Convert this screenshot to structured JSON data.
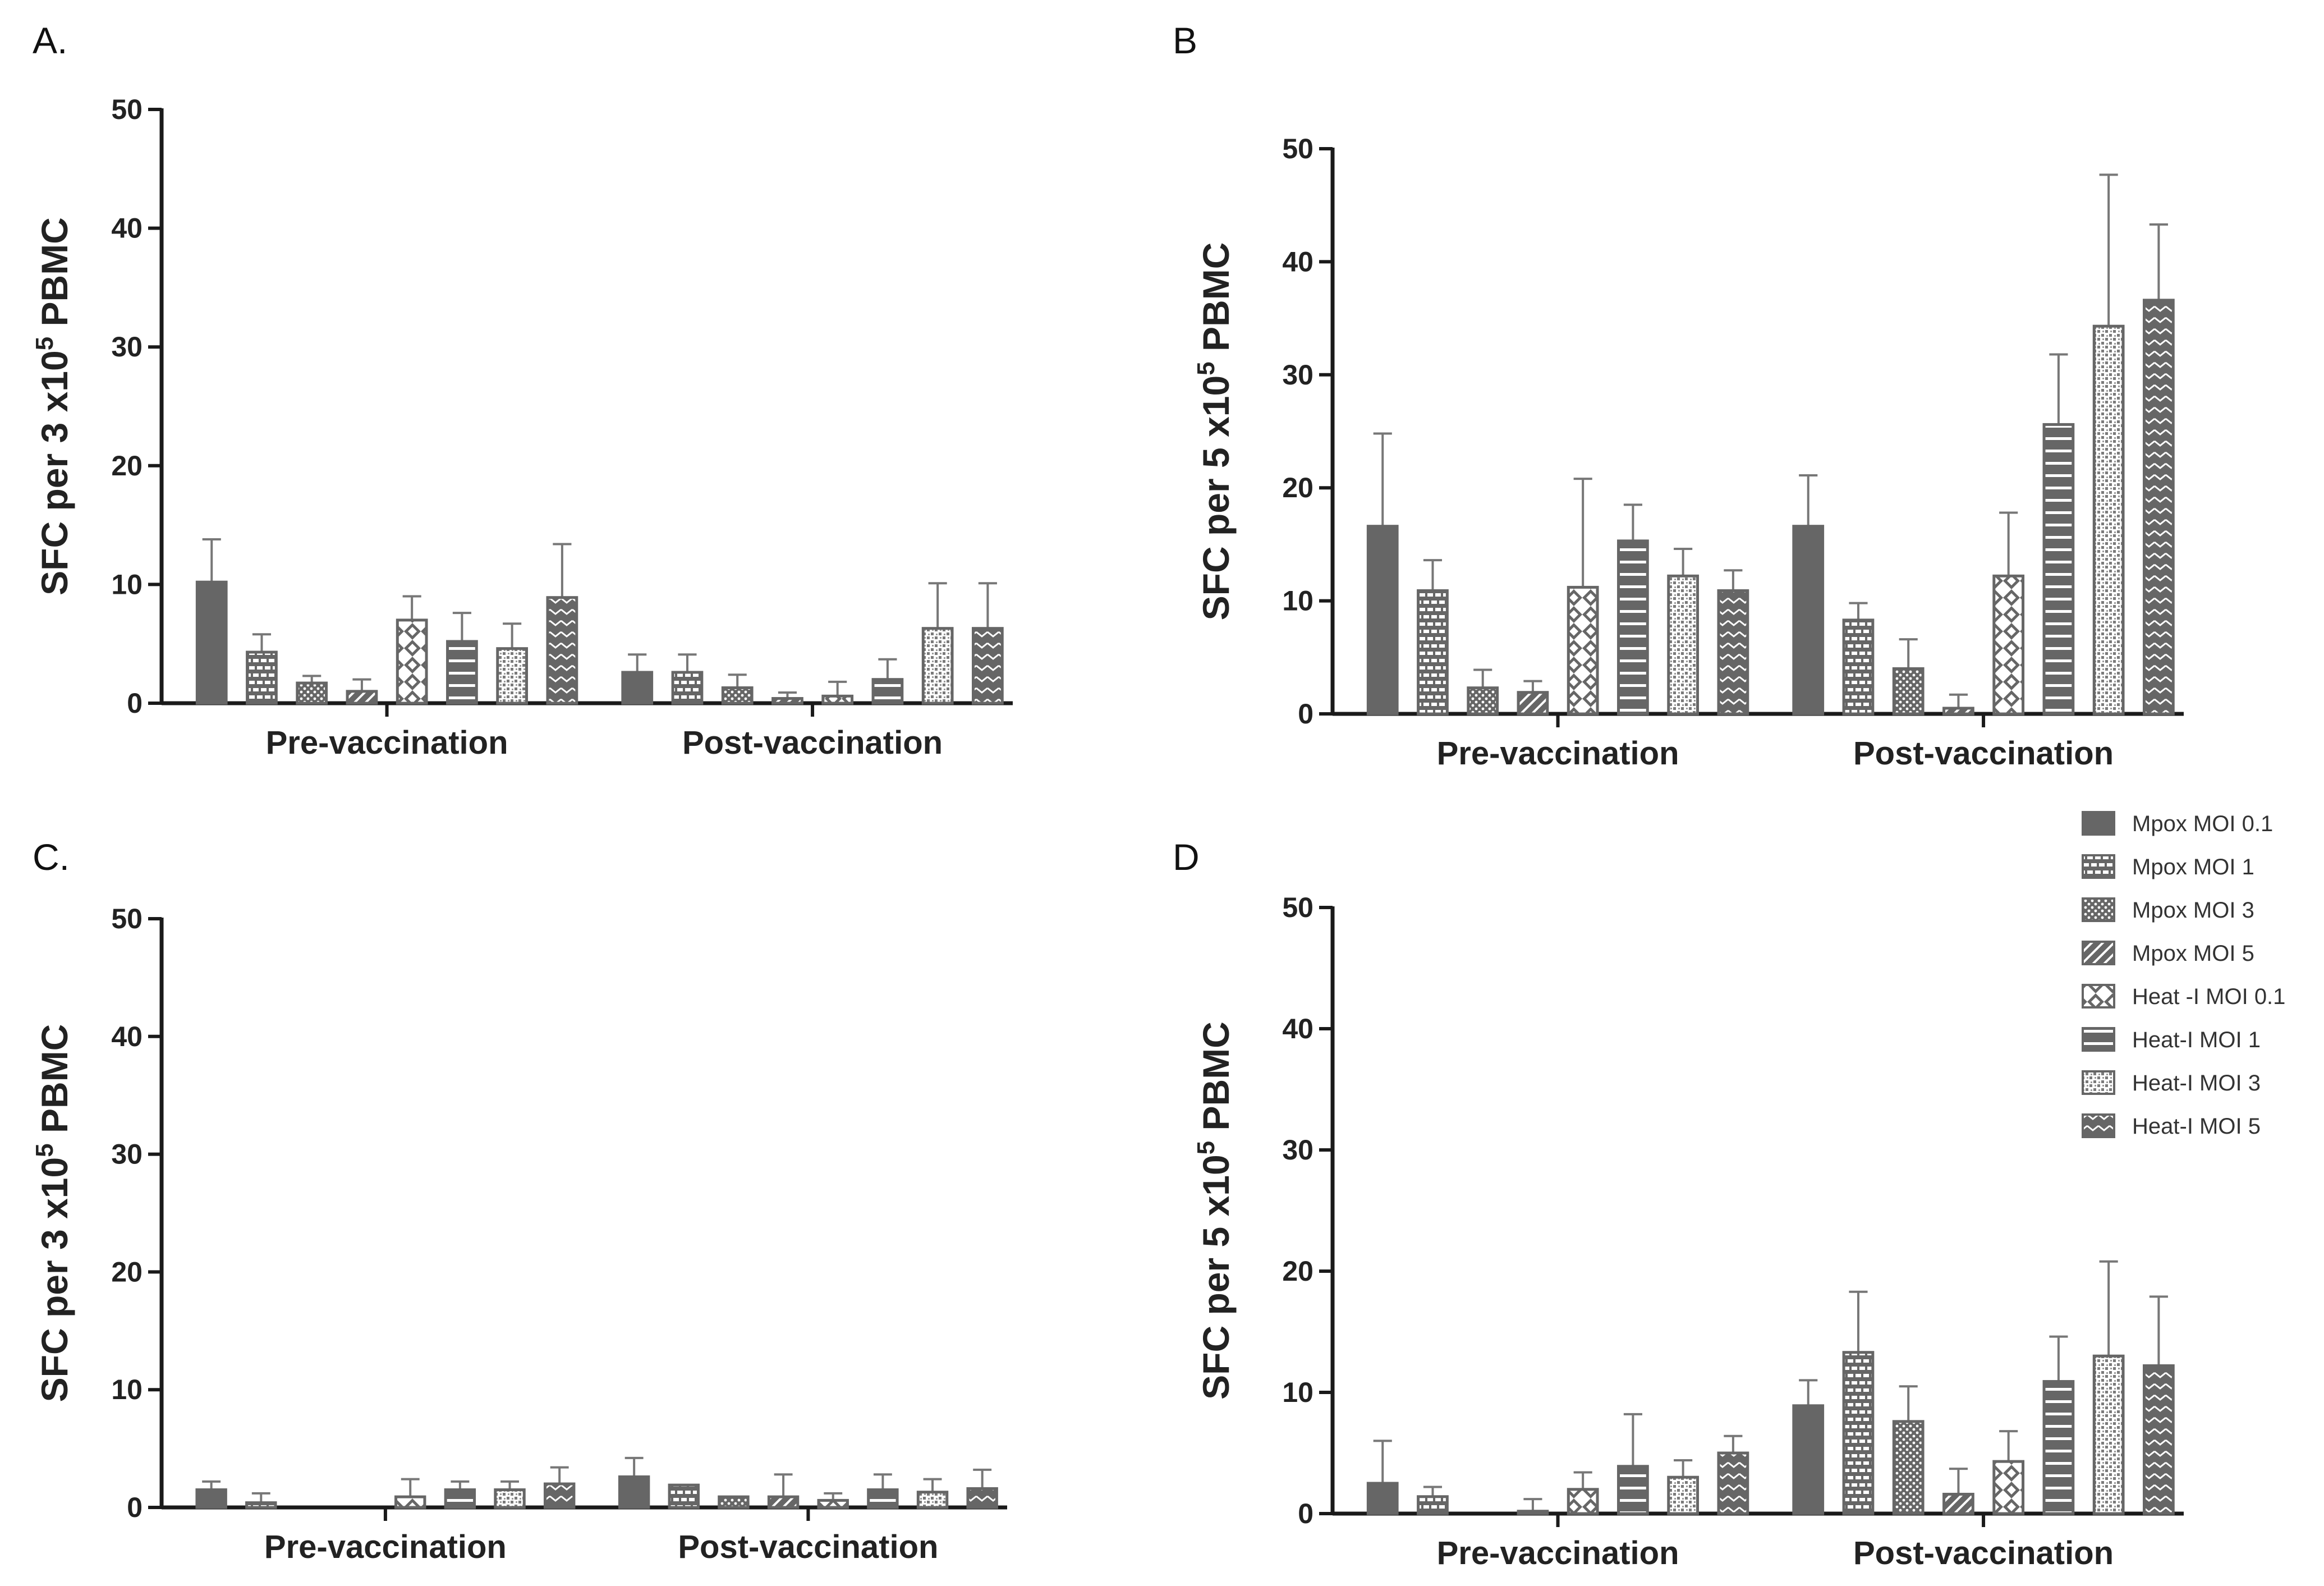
{
  "legend": {
    "entries": [
      {
        "label": "Mpox MOI 0.1",
        "pattern": "solid"
      },
      {
        "label": "Mpox MOI 1",
        "pattern": "bricks"
      },
      {
        "label": "Mpox MOI 3",
        "pattern": "dots"
      },
      {
        "label": "Mpox MOI 5",
        "pattern": "diag"
      },
      {
        "label": "Heat -I MOI 0.1",
        "pattern": "diamonds"
      },
      {
        "label": "Heat-I MOI 1",
        "pattern": "hlines"
      },
      {
        "label": "Heat-I MOI 3",
        "pattern": "speckle"
      },
      {
        "label": "Heat-I MOI 5",
        "pattern": "zigzag"
      }
    ]
  },
  "colors": {
    "bar": "#666666",
    "axis": "#1a1a1a",
    "background": "#ffffff"
  },
  "chart_data": [
    {
      "panel": "A.",
      "type": "bar",
      "ylabel": "SFC per 3 x10^5 PBMC",
      "ylabel_parts": {
        "pre": "SFC per 3 x10",
        "sup": "5",
        "post": " PBMC"
      },
      "ylim": [
        0,
        50
      ],
      "yticks": [
        "0",
        "10",
        "20",
        "30",
        "40",
        "50"
      ],
      "categories": [
        "Pre-vaccination",
        "Post-vaccination"
      ],
      "series": [
        {
          "name": "Mpox MOI 0.1",
          "values": [
            10.2,
            2.6
          ],
          "errors": [
            3.6,
            1.5
          ]
        },
        {
          "name": "Mpox MOI 1",
          "values": [
            4.3,
            2.6
          ],
          "errors": [
            1.5,
            1.5
          ]
        },
        {
          "name": "Mpox MOI 3",
          "values": [
            1.7,
            1.3
          ],
          "errors": [
            0.6,
            1.1
          ]
        },
        {
          "name": "Mpox MOI 5",
          "values": [
            1.0,
            0.4
          ],
          "errors": [
            1.0,
            0.5
          ]
        },
        {
          "name": "Heat -I MOI 0.1",
          "values": [
            7.0,
            0.6
          ],
          "errors": [
            2.0,
            1.2
          ]
        },
        {
          "name": "Heat-I MOI 1",
          "values": [
            5.2,
            2.0
          ],
          "errors": [
            2.4,
            1.7
          ]
        },
        {
          "name": "Heat-I MOI 3",
          "values": [
            4.6,
            6.3
          ],
          "errors": [
            2.1,
            3.8
          ]
        },
        {
          "name": "Heat-I MOI 5",
          "values": [
            8.9,
            6.3
          ],
          "errors": [
            4.5,
            3.8
          ]
        }
      ]
    },
    {
      "panel": "B",
      "type": "bar",
      "ylabel": "SFC per 5 x10^5 PBMC",
      "ylabel_parts": {
        "pre": "SFC per 5 x10",
        "sup": "5",
        "post": " PBMC"
      },
      "ylim": [
        0,
        50
      ],
      "yticks": [
        "0",
        "10",
        "20",
        "30",
        "40",
        "50"
      ],
      "categories": [
        "Pre-vaccination",
        "Post-vaccination"
      ],
      "series": [
        {
          "name": "Mpox MOI 0.1",
          "values": [
            16.6,
            16.6
          ],
          "errors": [
            8.2,
            4.5
          ]
        },
        {
          "name": "Mpox MOI 1",
          "values": [
            10.9,
            8.3
          ],
          "errors": [
            2.7,
            1.5
          ]
        },
        {
          "name": "Mpox MOI 3",
          "values": [
            2.3,
            4.0
          ],
          "errors": [
            1.6,
            2.6
          ]
        },
        {
          "name": "Mpox MOI 5",
          "values": [
            1.9,
            0.5
          ],
          "errors": [
            1.0,
            1.2
          ]
        },
        {
          "name": "Heat -I MOI 0.1",
          "values": [
            11.2,
            12.2
          ],
          "errors": [
            9.6,
            5.6
          ]
        },
        {
          "name": "Heat-I MOI 1",
          "values": [
            15.3,
            25.6
          ],
          "errors": [
            3.2,
            6.2
          ]
        },
        {
          "name": "Heat-I MOI 3",
          "values": [
            12.2,
            34.3
          ],
          "errors": [
            2.4,
            13.4
          ]
        },
        {
          "name": "Heat-I MOI 5",
          "values": [
            10.9,
            36.6
          ],
          "errors": [
            1.8,
            6.7
          ]
        }
      ]
    },
    {
      "panel": "C.",
      "type": "bar",
      "ylabel": "SFC per 3 x10^5 PBMC",
      "ylabel_parts": {
        "pre": "SFC per 3 x10",
        "sup": "5",
        "post": " PBMC"
      },
      "ylim": [
        0,
        50
      ],
      "yticks": [
        "0",
        "10",
        "20",
        "30",
        "40",
        "50"
      ],
      "categories": [
        "Pre-vaccination",
        "Post-vaccination"
      ],
      "series": [
        {
          "name": "Mpox MOI 0.1",
          "values": [
            1.5,
            2.6
          ],
          "errors": [
            0.7,
            1.6
          ]
        },
        {
          "name": "Mpox MOI 1",
          "values": [
            0.4,
            1.9
          ],
          "errors": [
            0.8,
            0.0
          ]
        },
        {
          "name": "Mpox MOI 3",
          "values": [
            0.0,
            0.9
          ],
          "errors": [
            0.0,
            0.0
          ]
        },
        {
          "name": "Mpox MOI 5",
          "values": [
            0.0,
            0.9
          ],
          "errors": [
            0.0,
            1.9
          ]
        },
        {
          "name": "Heat -I MOI 0.1",
          "values": [
            0.9,
            0.6
          ],
          "errors": [
            1.5,
            0.6
          ]
        },
        {
          "name": "Heat-I MOI 1",
          "values": [
            1.5,
            1.5
          ],
          "errors": [
            0.7,
            1.3
          ]
        },
        {
          "name": "Heat-I MOI 3",
          "values": [
            1.5,
            1.3
          ],
          "errors": [
            0.7,
            1.1
          ]
        },
        {
          "name": "Heat-I MOI 5",
          "values": [
            2.0,
            1.6
          ],
          "errors": [
            1.4,
            1.6
          ]
        }
      ]
    },
    {
      "panel": "D",
      "type": "bar",
      "ylabel": "SFC per 5 x10^5 PBMC",
      "ylabel_parts": {
        "pre": "SFC per 5 x10",
        "sup": "5",
        "post": " PBMC"
      },
      "ylim": [
        0,
        50
      ],
      "yticks": [
        "0",
        "10",
        "20",
        "30",
        "40",
        "50"
      ],
      "categories": [
        "Pre-vaccination",
        "Post-vaccination"
      ],
      "series": [
        {
          "name": "Mpox MOI 0.1",
          "values": [
            2.5,
            8.9
          ],
          "errors": [
            3.5,
            2.1
          ]
        },
        {
          "name": "Mpox MOI 1",
          "values": [
            1.4,
            13.3
          ],
          "errors": [
            0.8,
            5.0
          ]
        },
        {
          "name": "Mpox MOI 3",
          "values": [
            0.0,
            7.6
          ],
          "errors": [
            0.0,
            2.9
          ]
        },
        {
          "name": "Mpox MOI 5",
          "values": [
            0.2,
            1.6
          ],
          "errors": [
            1.0,
            2.1
          ]
        },
        {
          "name": "Heat -I MOI 0.1",
          "values": [
            2.0,
            4.3
          ],
          "errors": [
            1.4,
            2.5
          ]
        },
        {
          "name": "Heat-I MOI 1",
          "values": [
            3.9,
            10.9
          ],
          "errors": [
            4.3,
            3.7
          ]
        },
        {
          "name": "Heat-I MOI 3",
          "values": [
            3.0,
            13.0
          ],
          "errors": [
            1.4,
            7.8
          ]
        },
        {
          "name": "Heat-I MOI 5",
          "values": [
            5.0,
            12.2
          ],
          "errors": [
            1.4,
            5.7
          ]
        }
      ]
    }
  ]
}
